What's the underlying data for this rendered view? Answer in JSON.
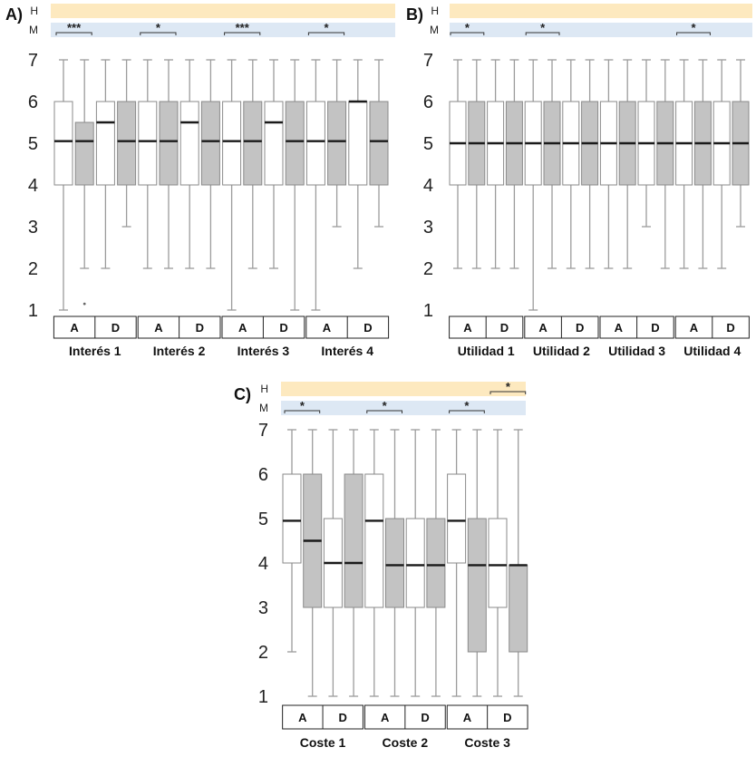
{
  "chart_data": [
    {
      "type": "boxplot",
      "panel": "A)",
      "ylim": [
        1,
        7
      ],
      "yticks": [
        "1",
        "2",
        "3",
        "4",
        "5",
        "6",
        "7"
      ],
      "strata_labels": {
        "H": "H",
        "M": "M"
      },
      "conditions": [
        "A",
        "D"
      ],
      "groups": [
        "Interés 1",
        "Interés 2",
        "Interés 3",
        "Interés 4"
      ],
      "boxes": [
        {
          "group": 0,
          "series": "white",
          "min": 1,
          "q1": 4,
          "median": 5.05,
          "q3": 6,
          "max": 7
        },
        {
          "group": 0,
          "series": "gray",
          "min": 2,
          "q1": 4,
          "median": 5.05,
          "q3": 5.5,
          "max": 7
        },
        {
          "group": 0,
          "series": "white",
          "min": 2,
          "q1": 4,
          "median": 5.5,
          "q3": 6,
          "max": 7
        },
        {
          "group": 0,
          "series": "gray",
          "min": 3,
          "q1": 4,
          "median": 5.05,
          "q3": 6,
          "max": 7
        },
        {
          "group": 1,
          "series": "white",
          "min": 2,
          "q1": 4,
          "median": 5.05,
          "q3": 6,
          "max": 7
        },
        {
          "group": 1,
          "series": "gray",
          "min": 2,
          "q1": 4,
          "median": 5.05,
          "q3": 6,
          "max": 7
        },
        {
          "group": 1,
          "series": "white",
          "min": 2,
          "q1": 4,
          "median": 5.5,
          "q3": 6,
          "max": 7
        },
        {
          "group": 1,
          "series": "gray",
          "min": 2,
          "q1": 4,
          "median": 5.05,
          "q3": 6,
          "max": 7
        },
        {
          "group": 2,
          "series": "white",
          "min": 1,
          "q1": 4,
          "median": 5.05,
          "q3": 6,
          "max": 7
        },
        {
          "group": 2,
          "series": "gray",
          "min": 2,
          "q1": 4,
          "median": 5.05,
          "q3": 6,
          "max": 7
        },
        {
          "group": 2,
          "series": "white",
          "min": 2,
          "q1": 4,
          "median": 5.5,
          "q3": 6,
          "max": 7
        },
        {
          "group": 2,
          "series": "gray",
          "min": 1,
          "q1": 4,
          "median": 5.05,
          "q3": 6,
          "max": 7
        },
        {
          "group": 3,
          "series": "white",
          "min": 1,
          "q1": 4,
          "median": 5.05,
          "q3": 6,
          "max": 7
        },
        {
          "group": 3,
          "series": "gray",
          "min": 3,
          "q1": 4,
          "median": 5.05,
          "q3": 6,
          "max": 7
        },
        {
          "group": 3,
          "series": "white",
          "min": 2,
          "q1": 4,
          "median": 6,
          "q3": 6,
          "max": 7
        },
        {
          "group": 3,
          "series": "gray",
          "min": 3,
          "q1": 4,
          "median": 5.05,
          "q3": 6,
          "max": 7
        }
      ],
      "outliers": [
        {
          "box": 1,
          "value": 1.15
        }
      ],
      "significance": [
        {
          "row": "M",
          "from": 0,
          "to": 1,
          "label": "***"
        },
        {
          "row": "M",
          "from": 4,
          "to": 5,
          "label": "*"
        },
        {
          "row": "M",
          "from": 8,
          "to": 9,
          "label": "***"
        },
        {
          "row": "M",
          "from": 12,
          "to": 13,
          "label": "*"
        }
      ]
    },
    {
      "type": "boxplot",
      "panel": "B)",
      "ylim": [
        1,
        7
      ],
      "yticks": [
        "1",
        "2",
        "3",
        "4",
        "5",
        "6",
        "7"
      ],
      "strata_labels": {
        "H": "H",
        "M": "M"
      },
      "conditions": [
        "A",
        "D"
      ],
      "groups": [
        "Utilidad 1",
        "Utilidad 2",
        "Utilidad 3",
        "Utilidad 4"
      ],
      "boxes": [
        {
          "group": 0,
          "series": "white",
          "min": 2,
          "q1": 4,
          "median": 5,
          "q3": 6,
          "max": 7
        },
        {
          "group": 0,
          "series": "gray",
          "min": 2,
          "q1": 4,
          "median": 5,
          "q3": 6,
          "max": 7
        },
        {
          "group": 0,
          "series": "white",
          "min": 2,
          "q1": 4,
          "median": 5,
          "q3": 6,
          "max": 7
        },
        {
          "group": 0,
          "series": "gray",
          "min": 2,
          "q1": 4,
          "median": 5,
          "q3": 6,
          "max": 7
        },
        {
          "group": 1,
          "series": "white",
          "min": 1,
          "q1": 4,
          "median": 5,
          "q3": 6,
          "max": 7
        },
        {
          "group": 1,
          "series": "gray",
          "min": 2,
          "q1": 4,
          "median": 5,
          "q3": 6,
          "max": 7
        },
        {
          "group": 1,
          "series": "white",
          "min": 2,
          "q1": 4,
          "median": 5,
          "q3": 6,
          "max": 7
        },
        {
          "group": 1,
          "series": "gray",
          "min": 2,
          "q1": 4,
          "median": 5,
          "q3": 6,
          "max": 7
        },
        {
          "group": 2,
          "series": "white",
          "min": 2,
          "q1": 4,
          "median": 5,
          "q3": 6,
          "max": 7
        },
        {
          "group": 2,
          "series": "gray",
          "min": 2,
          "q1": 4,
          "median": 5,
          "q3": 6,
          "max": 7
        },
        {
          "group": 2,
          "series": "white",
          "min": 3,
          "q1": 4,
          "median": 5,
          "q3": 6,
          "max": 7
        },
        {
          "group": 2,
          "series": "gray",
          "min": 2,
          "q1": 4,
          "median": 5,
          "q3": 6,
          "max": 7
        },
        {
          "group": 3,
          "series": "white",
          "min": 2,
          "q1": 4,
          "median": 5,
          "q3": 6,
          "max": 7
        },
        {
          "group": 3,
          "series": "gray",
          "min": 2,
          "q1": 4,
          "median": 5,
          "q3": 6,
          "max": 7
        },
        {
          "group": 3,
          "series": "white",
          "min": 2,
          "q1": 4,
          "median": 5,
          "q3": 6,
          "max": 7
        },
        {
          "group": 3,
          "series": "gray",
          "min": 3,
          "q1": 4,
          "median": 5,
          "q3": 6,
          "max": 7
        }
      ],
      "outliers": [],
      "significance": [
        {
          "row": "M",
          "from": 0,
          "to": 1,
          "label": "*"
        },
        {
          "row": "M",
          "from": 4,
          "to": 5,
          "label": "*"
        },
        {
          "row": "M",
          "from": 12,
          "to": 13,
          "label": "*"
        }
      ]
    },
    {
      "type": "boxplot",
      "panel": "C)",
      "ylim": [
        1,
        7
      ],
      "yticks": [
        "1",
        "2",
        "3",
        "4",
        "5",
        "6",
        "7"
      ],
      "strata_labels": {
        "H": "H",
        "M": "M"
      },
      "conditions": [
        "A",
        "D"
      ],
      "groups": [
        "Coste 1",
        "Coste 2",
        "Coste 3"
      ],
      "boxes": [
        {
          "group": 0,
          "series": "white",
          "min": 2,
          "q1": 4,
          "median": 4.95,
          "q3": 6,
          "max": 7
        },
        {
          "group": 0,
          "series": "gray",
          "min": 1,
          "q1": 3,
          "median": 4.5,
          "q3": 6,
          "max": 7
        },
        {
          "group": 0,
          "series": "white",
          "min": 1,
          "q1": 3,
          "median": 4,
          "q3": 5,
          "max": 7
        },
        {
          "group": 0,
          "series": "gray",
          "min": 1,
          "q1": 3,
          "median": 4,
          "q3": 6,
          "max": 7
        },
        {
          "group": 1,
          "series": "white",
          "min": 1,
          "q1": 3,
          "median": 4.95,
          "q3": 6,
          "max": 7
        },
        {
          "group": 1,
          "series": "gray",
          "min": 1,
          "q1": 3,
          "median": 3.95,
          "q3": 5,
          "max": 7
        },
        {
          "group": 1,
          "series": "white",
          "min": 1,
          "q1": 3,
          "median": 3.95,
          "q3": 5,
          "max": 7
        },
        {
          "group": 1,
          "series": "gray",
          "min": 1,
          "q1": 3,
          "median": 3.95,
          "q3": 5,
          "max": 7
        },
        {
          "group": 2,
          "series": "white",
          "min": 1,
          "q1": 4,
          "median": 4.95,
          "q3": 6,
          "max": 7
        },
        {
          "group": 2,
          "series": "gray",
          "min": 1,
          "q1": 2,
          "median": 3.95,
          "q3": 5,
          "max": 7
        },
        {
          "group": 2,
          "series": "white",
          "min": 1,
          "q1": 3,
          "median": 3.95,
          "q3": 5,
          "max": 7
        },
        {
          "group": 2,
          "series": "gray",
          "min": 1,
          "q1": 2,
          "median": 3.95,
          "q3": 3.95,
          "max": 7
        }
      ],
      "outliers": [],
      "significance": [
        {
          "row": "H",
          "from": 10,
          "to": 11,
          "label": "*"
        },
        {
          "row": "M",
          "from": 0,
          "to": 1,
          "label": "*"
        },
        {
          "row": "M",
          "from": 4,
          "to": 5,
          "label": "*"
        },
        {
          "row": "M",
          "from": 8,
          "to": 9,
          "label": "*"
        }
      ]
    }
  ],
  "colors": {
    "h_band": "#fde9bf",
    "m_band": "#dde8f4",
    "white_box": "#ffffff",
    "gray_box": "#c3c3c3",
    "whisker": "#9c9c9c",
    "median": "#1a1a1a"
  }
}
